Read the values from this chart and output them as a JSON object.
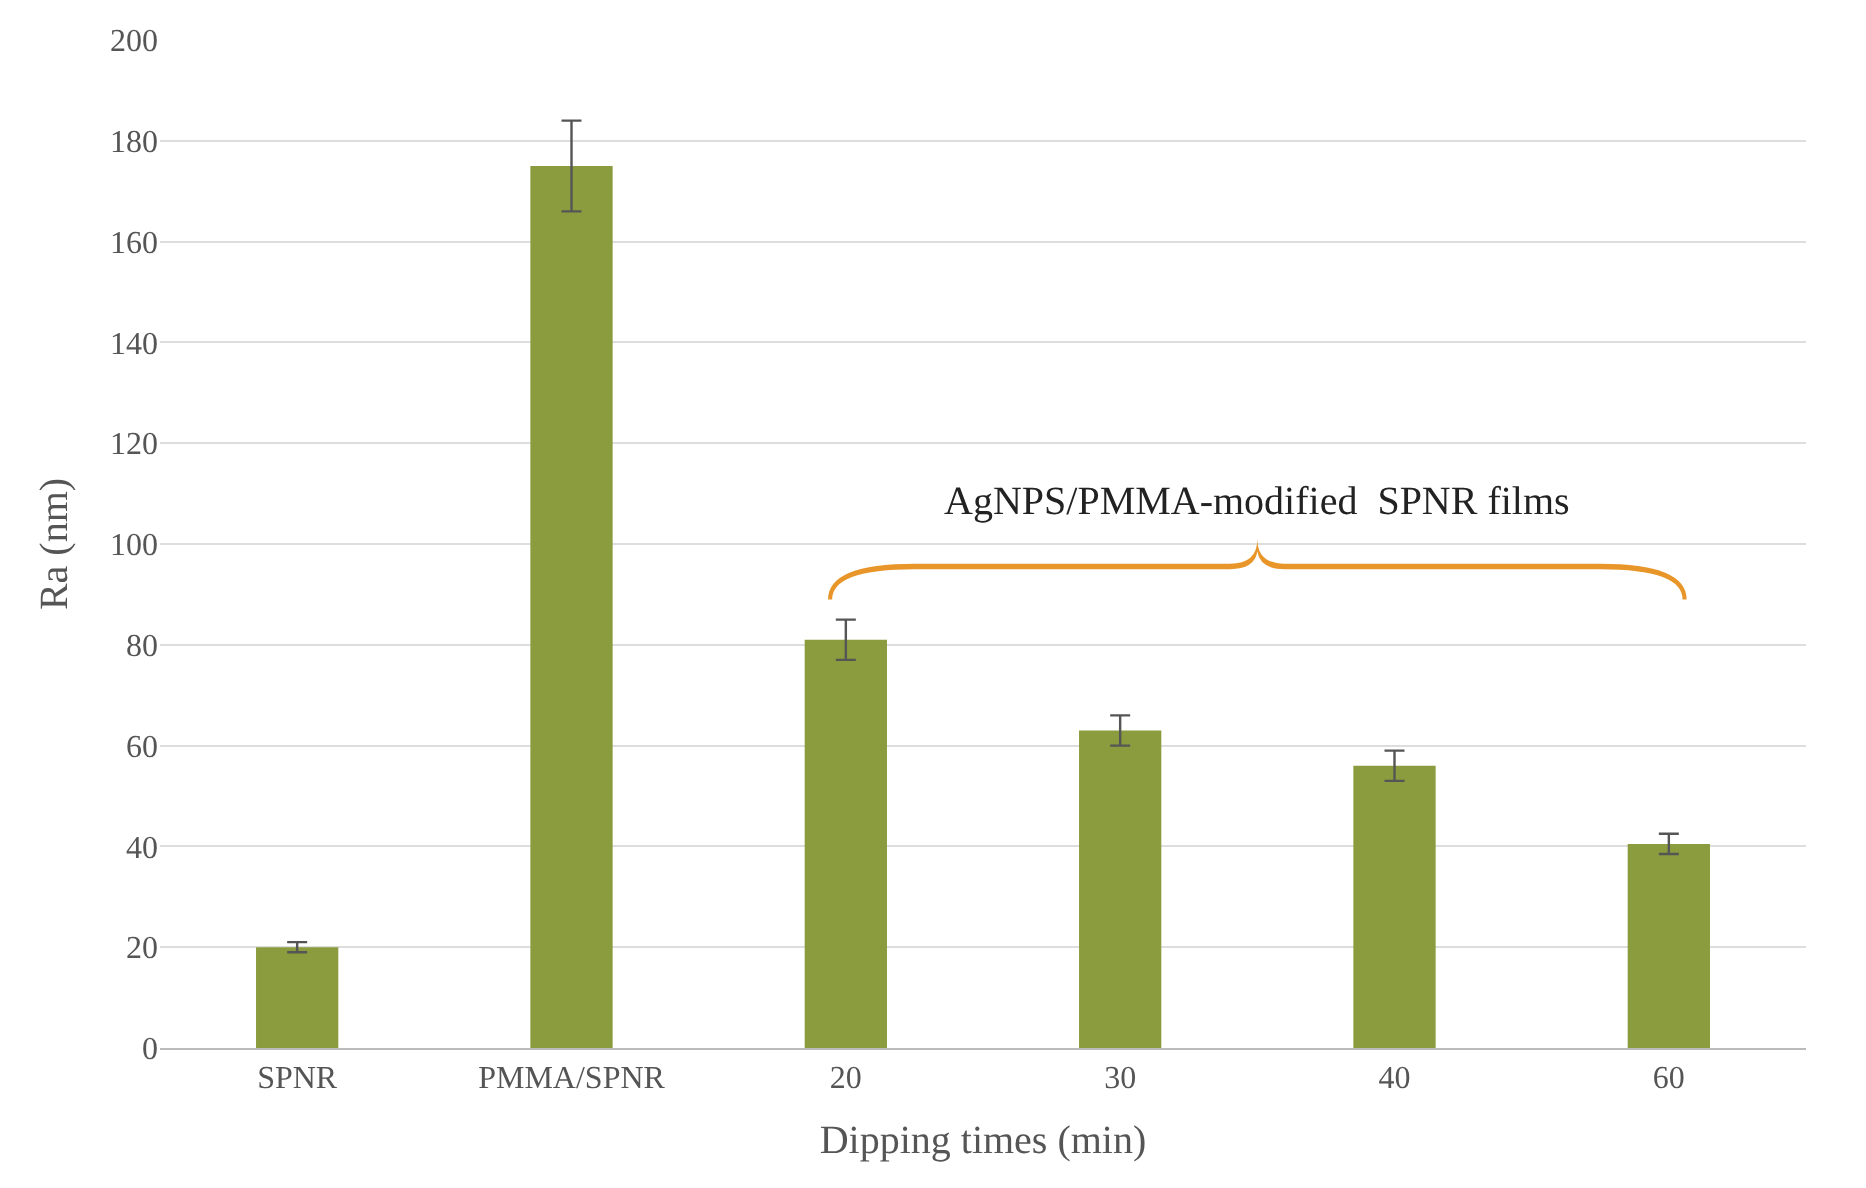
{
  "chart_data": {
    "type": "bar",
    "xlabel": "Dipping times (min)",
    "ylabel": "Ra (nm)",
    "categories": [
      "SPNR",
      "PMMA/SPNR",
      "20",
      "30",
      "40",
      "60"
    ],
    "values": [
      20,
      175,
      81,
      63,
      56,
      40.5
    ],
    "errors": [
      1,
      9,
      4,
      3,
      3,
      2
    ],
    "color": "#8b9c3e",
    "ylim": [
      0,
      200
    ],
    "yticks": [
      0,
      20,
      40,
      60,
      80,
      100,
      120,
      140,
      160,
      180,
      200
    ],
    "grid": "y",
    "annotations": [
      "AgNPS/PMMA-modified  SPNR films"
    ]
  }
}
